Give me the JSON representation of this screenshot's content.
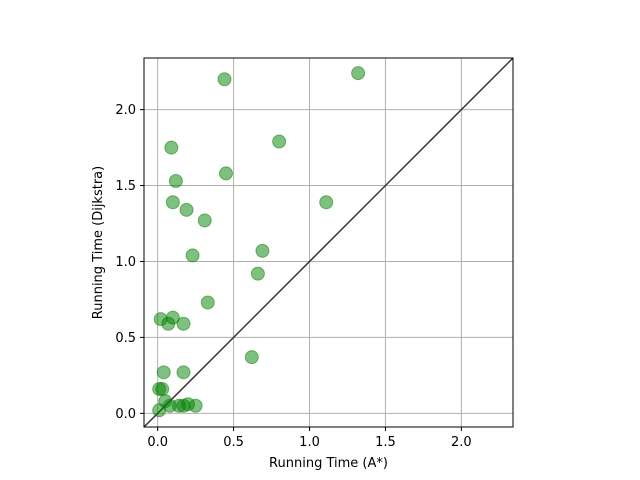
{
  "chart_data": {
    "type": "scatter",
    "xlabel": "Running Time (A*)",
    "ylabel": "Running Time (Dijkstra)",
    "xlim": [
      -0.09,
      2.34
    ],
    "ylim": [
      -0.09,
      2.34
    ],
    "grid": true,
    "x_ticks": [
      "0.0",
      "0.5",
      "1.0",
      "1.5",
      "2.0"
    ],
    "y_ticks": [
      "0.0",
      "0.5",
      "1.0",
      "1.5",
      "2.0"
    ],
    "marker_color": "#008000",
    "marker_opacity": 0.5,
    "reference_line": "y = x",
    "reference_line_color": "#333333",
    "points": [
      {
        "x": 0.44,
        "y": 2.2
      },
      {
        "x": 1.32,
        "y": 2.24
      },
      {
        "x": 0.09,
        "y": 1.75
      },
      {
        "x": 0.8,
        "y": 1.79
      },
      {
        "x": 0.45,
        "y": 1.58
      },
      {
        "x": 0.12,
        "y": 1.53
      },
      {
        "x": 0.1,
        "y": 1.39
      },
      {
        "x": 0.19,
        "y": 1.34
      },
      {
        "x": 1.11,
        "y": 1.39
      },
      {
        "x": 0.31,
        "y": 1.27
      },
      {
        "x": 0.23,
        "y": 1.04
      },
      {
        "x": 0.69,
        "y": 1.07
      },
      {
        "x": 0.66,
        "y": 0.92
      },
      {
        "x": 0.33,
        "y": 0.73
      },
      {
        "x": 0.02,
        "y": 0.62
      },
      {
        "x": 0.1,
        "y": 0.63
      },
      {
        "x": 0.07,
        "y": 0.59
      },
      {
        "x": 0.17,
        "y": 0.59
      },
      {
        "x": 0.62,
        "y": 0.37
      },
      {
        "x": 0.04,
        "y": 0.27
      },
      {
        "x": 0.17,
        "y": 0.27
      },
      {
        "x": 0.01,
        "y": 0.16
      },
      {
        "x": 0.03,
        "y": 0.16
      },
      {
        "x": 0.05,
        "y": 0.08
      },
      {
        "x": 0.08,
        "y": 0.05
      },
      {
        "x": 0.14,
        "y": 0.05
      },
      {
        "x": 0.17,
        "y": 0.05
      },
      {
        "x": 0.2,
        "y": 0.06
      },
      {
        "x": 0.25,
        "y": 0.05
      },
      {
        "x": 0.01,
        "y": 0.02
      }
    ]
  }
}
